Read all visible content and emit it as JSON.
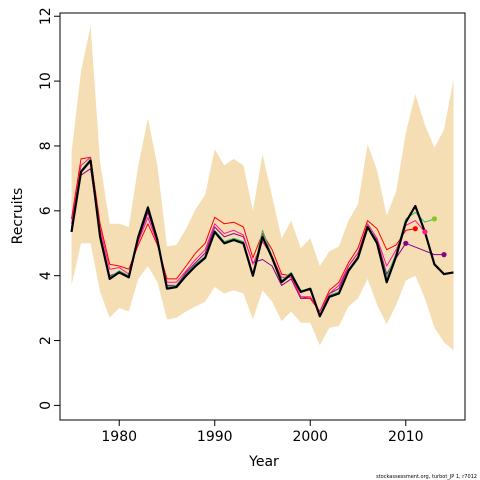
{
  "chart_data": {
    "type": "line",
    "xlabel": "Year",
    "ylabel": "Recruits",
    "credit": "stockassessment.org, turbot_JP 1, r7012",
    "xlim": [
      1973.8,
      2016.2
    ],
    "ylim": [
      -0.45,
      12.1
    ],
    "x_ticks": [
      1980,
      1990,
      2000,
      2010
    ],
    "y_ticks": [
      0,
      2,
      4,
      6,
      8,
      10,
      12
    ],
    "grid": false,
    "colors": {
      "band": "#f5deb3",
      "main": "#000000"
    },
    "band": {
      "x": [
        1975,
        1976,
        1977,
        1978,
        1979,
        1980,
        1981,
        1982,
        1983,
        1984,
        1985,
        1986,
        1987,
        1988,
        1989,
        1990,
        1991,
        1992,
        1993,
        1994,
        1995,
        1996,
        1997,
        1998,
        1999,
        2000,
        2001,
        2002,
        2003,
        2004,
        2005,
        2006,
        2007,
        2008,
        2009,
        2010,
        2011,
        2012,
        2013,
        2014,
        2015
      ],
      "lower": [
        3.7,
        5.0,
        5.0,
        3.5,
        2.7,
        3.0,
        2.9,
        3.9,
        4.3,
        3.8,
        2.65,
        2.7,
        2.9,
        3.05,
        3.2,
        3.65,
        3.45,
        3.55,
        3.45,
        2.65,
        3.55,
        3.2,
        2.6,
        2.9,
        2.55,
        2.55,
        1.85,
        2.4,
        2.45,
        3.05,
        3.3,
        3.9,
        3.1,
        2.5,
        3.1,
        3.85,
        4.0,
        3.3,
        2.4,
        1.95,
        1.7
      ],
      "upper": [
        7.8,
        10.3,
        11.7,
        7.5,
        5.6,
        5.6,
        5.5,
        7.4,
        8.85,
        7.4,
        4.9,
        4.95,
        5.45,
        6.05,
        6.5,
        7.9,
        7.4,
        7.6,
        7.4,
        6.0,
        7.75,
        6.45,
        5.15,
        5.7,
        4.85,
        5.15,
        4.3,
        4.75,
        4.9,
        5.7,
        6.2,
        8.05,
        7.25,
        5.85,
        6.6,
        8.4,
        9.6,
        8.65,
        7.95,
        8.5,
        10.05
      ]
    },
    "series": [
      {
        "color": "#000000",
        "width": 2.2,
        "x": [
          1975,
          1976,
          1977,
          1978,
          1979,
          1980,
          1981,
          1982,
          1983,
          1984,
          1985,
          1986,
          1987,
          1988,
          1989,
          1990,
          1991,
          1992,
          1993,
          1994,
          1995,
          1996,
          1997,
          1998,
          1999,
          2000,
          2001,
          2002,
          2003,
          2004,
          2005,
          2006,
          2007,
          2008,
          2009,
          2010,
          2011,
          2012,
          2013,
          2014,
          2015
        ],
        "y": [
          5.35,
          7.2,
          7.55,
          5.2,
          3.9,
          4.1,
          3.95,
          5.2,
          6.1,
          5.1,
          3.6,
          3.65,
          4.0,
          4.3,
          4.55,
          5.35,
          5.0,
          5.1,
          5.0,
          4.0,
          5.2,
          4.55,
          3.8,
          4.05,
          3.5,
          3.6,
          2.75,
          3.35,
          3.45,
          4.15,
          4.55,
          5.5,
          5.0,
          3.8,
          4.6,
          5.65,
          6.15,
          5.35,
          4.35,
          4.05,
          4.1
        ]
      },
      {
        "color": "#3cb371",
        "width": 1,
        "x": [
          1975,
          1976,
          1977,
          1978,
          1979,
          1980,
          1981,
          1982,
          1983,
          1984,
          1985,
          1986,
          1987,
          1988,
          1989,
          1990,
          1991,
          1992,
          1993,
          1994,
          1995,
          1996,
          1997,
          1998,
          1999,
          2000,
          2001,
          2002,
          2003,
          2004,
          2005,
          2006,
          2007,
          2008,
          2009,
          2010,
          2011,
          2012,
          2013
        ],
        "y": [
          5.4,
          7.25,
          7.6,
          5.25,
          3.95,
          4.15,
          4.0,
          5.25,
          6.15,
          5.15,
          3.65,
          3.7,
          4.05,
          4.35,
          4.6,
          5.4,
          5.05,
          5.15,
          5.05,
          4.05,
          5.4,
          4.6,
          3.85,
          4.1,
          3.55,
          3.55,
          2.8,
          3.4,
          3.5,
          4.2,
          4.6,
          5.55,
          5.05,
          3.95,
          4.7,
          5.75,
          5.95,
          5.65,
          5.75
        ]
      },
      {
        "color": "#ff1493",
        "width": 1,
        "x": [
          1975,
          1976,
          1977,
          1978,
          1979,
          1980,
          1981,
          1982,
          1983,
          1984,
          1985,
          1986,
          1987,
          1988,
          1989,
          1990,
          1991,
          1992,
          1993,
          1994,
          1995,
          1996,
          1997,
          1998,
          1999,
          2000,
          2001,
          2002,
          2003,
          2004,
          2005,
          2006,
          2007,
          2008,
          2009,
          2010,
          2011,
          2012
        ],
        "y": [
          5.6,
          7.4,
          7.65,
          5.45,
          4.2,
          4.25,
          4.05,
          5.05,
          5.8,
          5.0,
          3.8,
          3.8,
          4.15,
          4.5,
          4.8,
          5.6,
          5.3,
          5.4,
          5.25,
          4.35,
          5.05,
          4.6,
          3.95,
          3.95,
          3.35,
          3.35,
          2.9,
          3.45,
          3.7,
          4.3,
          4.7,
          5.6,
          5.15,
          4.3,
          4.8,
          5.55,
          5.7,
          5.35
        ]
      },
      {
        "color": "#ff0000",
        "width": 1,
        "x": [
          1975,
          1976,
          1977,
          1978,
          1979,
          1980,
          1981,
          1982,
          1983,
          1984,
          1985,
          1986,
          1987,
          1988,
          1989,
          1990,
          1991,
          1992,
          1993,
          1994,
          1995,
          1996,
          1997,
          1998,
          1999,
          2000,
          2001,
          2002,
          2003,
          2004,
          2005,
          2006,
          2007,
          2008,
          2009,
          2010,
          2011
        ],
        "y": [
          5.75,
          7.6,
          7.65,
          5.6,
          4.35,
          4.3,
          4.2,
          4.95,
          5.6,
          4.95,
          3.9,
          3.9,
          4.3,
          4.7,
          5.0,
          5.8,
          5.6,
          5.65,
          5.5,
          4.55,
          5.3,
          4.8,
          4.05,
          4.0,
          3.35,
          3.3,
          2.9,
          3.55,
          3.8,
          4.4,
          4.85,
          5.7,
          5.45,
          4.8,
          4.95,
          5.4,
          5.45
        ]
      },
      {
        "color": "#8b008b",
        "width": 1,
        "x": [
          1975,
          1976,
          1977,
          1978,
          1979,
          1980,
          1981,
          1982,
          1983,
          1984,
          1985,
          1986,
          1987,
          1988,
          1989,
          1990,
          1991,
          1992,
          1993,
          1994,
          1995,
          1996,
          1997,
          1998,
          1999,
          2000,
          2001,
          2002,
          2003,
          2004,
          2005,
          2006,
          2007,
          2008,
          2009,
          2010,
          2013,
          2014
        ],
        "y": [
          5.5,
          7.1,
          7.3,
          5.3,
          4.0,
          4.1,
          3.95,
          5.1,
          5.95,
          5.05,
          3.7,
          3.7,
          4.1,
          4.4,
          4.7,
          5.5,
          5.2,
          5.3,
          5.2,
          4.4,
          4.5,
          4.3,
          3.7,
          3.9,
          3.3,
          3.3,
          2.9,
          3.45,
          3.6,
          4.3,
          4.7,
          5.5,
          5.1,
          4.05,
          4.55,
          5.0,
          4.65,
          4.65
        ]
      }
    ],
    "points": [
      {
        "x": 2010,
        "y": 5.0,
        "color": "#8b008b"
      },
      {
        "x": 2011,
        "y": 5.45,
        "color": "#ff0000"
      },
      {
        "x": 2012,
        "y": 5.35,
        "color": "#ff1493"
      },
      {
        "x": 2013,
        "y": 5.75,
        "color": "#7fcc1a"
      },
      {
        "x": 2014,
        "y": 4.65,
        "color": "#8b008b"
      }
    ]
  }
}
